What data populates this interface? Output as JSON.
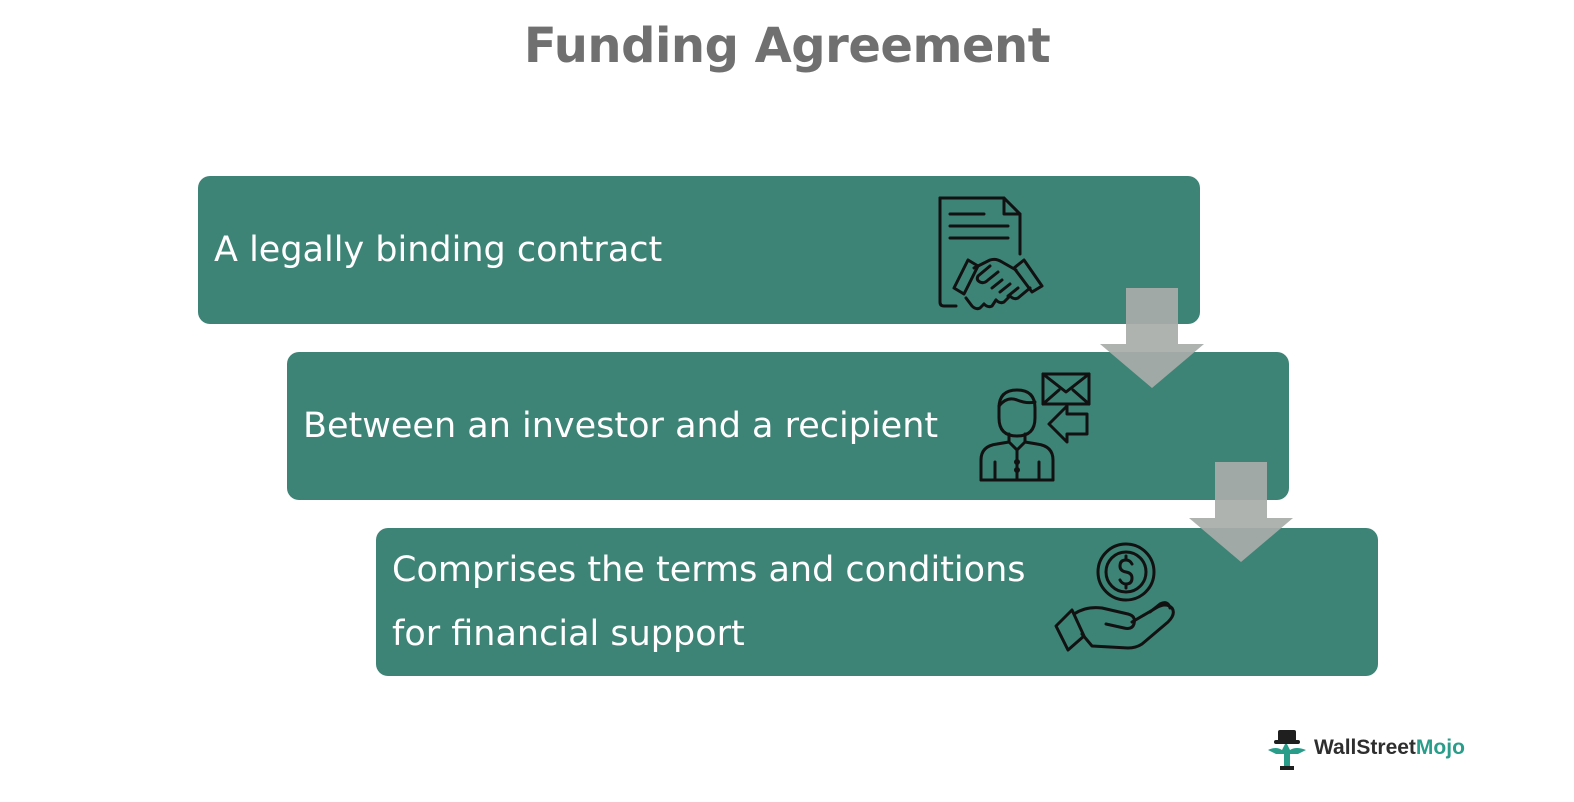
{
  "title": "Funding Agreement",
  "colors": {
    "box_fill": "#3d8476",
    "arrow_fill": "#a8aca9",
    "title_color": "#707070",
    "icon_stroke": "#111111",
    "logo_accent": "#2a9d8a"
  },
  "steps": [
    {
      "lines": [
        "A legally binding contract"
      ],
      "icon": "document-handshake-icon"
    },
    {
      "lines": [
        "Between an investor and a recipient"
      ],
      "icon": "person-mail-icon"
    },
    {
      "lines": [
        "Comprises the terms and conditions",
        "for financial support"
      ],
      "icon": "hand-coin-icon"
    }
  ],
  "logo": {
    "text_part1": "Wall",
    "text_part2": "Street",
    "text_part3": "Mojo"
  }
}
